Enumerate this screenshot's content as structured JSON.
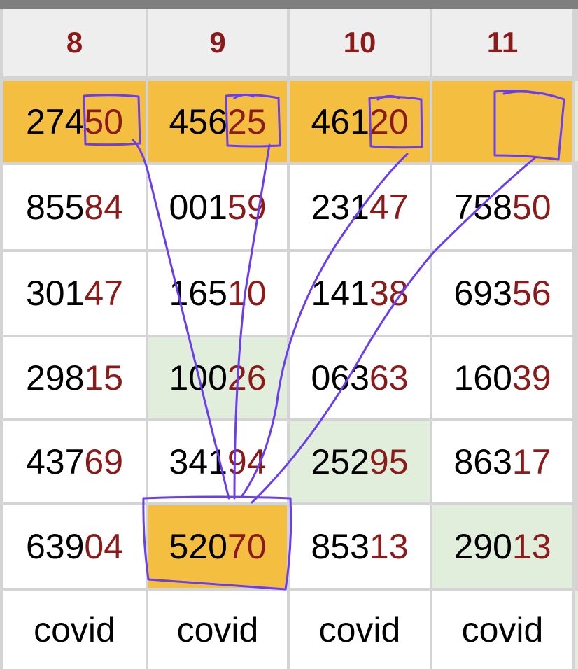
{
  "headers": [
    "8",
    "9",
    "10",
    "11"
  ],
  "rows": [
    [
      {
        "a": "274",
        "b": "50"
      },
      {
        "a": "456",
        "b": "25"
      },
      {
        "a": "461",
        "b": "20"
      },
      {
        "a": "",
        "b": ""
      }
    ],
    [
      {
        "a": "855",
        "b": "84"
      },
      {
        "a": "001",
        "b": "59"
      },
      {
        "a": "231",
        "b": "47"
      },
      {
        "a": "758",
        "b": "50"
      }
    ],
    [
      {
        "a": "301",
        "b": "47"
      },
      {
        "a": "165",
        "b": "10"
      },
      {
        "a": "141",
        "b": "38"
      },
      {
        "a": "693",
        "b": "56"
      }
    ],
    [
      {
        "a": "298",
        "b": "15"
      },
      {
        "a": "100",
        "b": "26"
      },
      {
        "a": "063",
        "b": "63"
      },
      {
        "a": "160",
        "b": "39"
      }
    ],
    [
      {
        "a": "437",
        "b": "69"
      },
      {
        "a": "341",
        "b": "94"
      },
      {
        "a": "252",
        "b": "95"
      },
      {
        "a": "863",
        "b": "17"
      }
    ],
    [
      {
        "a": "639",
        "b": "04"
      },
      {
        "a": "520",
        "b": "70"
      },
      {
        "a": "853",
        "b": "13"
      },
      {
        "a": "290",
        "b": "13"
      }
    ]
  ],
  "footer": [
    "covid",
    "covid",
    "covid",
    "covid"
  ],
  "highlighted_cells": [
    [
      0,
      0
    ],
    [
      0,
      1
    ],
    [
      0,
      2
    ],
    [
      0,
      3
    ],
    [
      5,
      1
    ]
  ],
  "green_cells": [
    [
      3,
      1
    ],
    [
      4,
      2
    ],
    [
      5,
      3
    ]
  ],
  "colors": {
    "highlight": "#f4bf40",
    "green": "#e2eedc",
    "digit_red": "#8b1a1a",
    "annotation": "#6a3df0"
  }
}
